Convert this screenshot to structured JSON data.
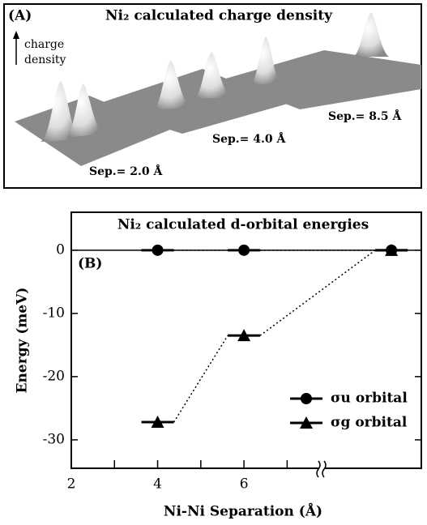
{
  "panel_a": {
    "label": "(A)",
    "title": "Ni₂ calculated charge density",
    "axis_label": [
      "charge",
      "density"
    ],
    "annotations": [
      "Sep.= 2.0 Å",
      "Sep.= 4.0 Å",
      "Sep.= 8.5 Å"
    ]
  },
  "chart_data": {
    "type": "line",
    "panel_label": "(B)",
    "title": "Ni₂ calculated d-orbital energies",
    "x_label": "Ni-Ni Separation (Å)",
    "y_label": "Energy (meV)",
    "series": [
      {
        "name": "σu orbital",
        "color": "#000000",
        "marker": "circle",
        "x": [
          4,
          6,
          8.5
        ],
        "values": [
          0,
          0,
          0
        ]
      },
      {
        "name": "σg orbital",
        "color": "#000000",
        "marker": "triangle",
        "x": [
          4,
          6,
          8.5
        ],
        "values": [
          -27.2,
          -13.5,
          0
        ]
      }
    ],
    "xlim": [
      2,
      8.8
    ],
    "xticks": [
      2,
      4,
      6
    ],
    "xminor": [
      3,
      5,
      7
    ],
    "x_break": 7.8,
    "ylim": [
      -34.5,
      6
    ],
    "yticks": [
      0,
      -10,
      -20,
      -30
    ]
  }
}
